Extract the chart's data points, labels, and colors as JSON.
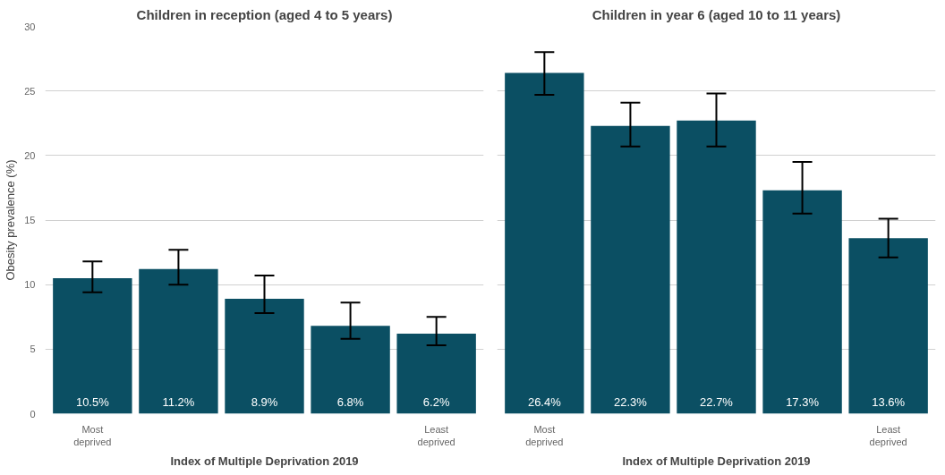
{
  "chart_data": [
    {
      "type": "bar",
      "title": "Children in reception (aged 4 to 5 years)",
      "xlabel": "Index of Multiple Deprivation 2019",
      "ylabel": "Obesity prevalence (%)",
      "categories": [
        "Most deprived",
        null,
        null,
        null,
        "Least deprived"
      ],
      "values": [
        10.5,
        11.2,
        8.9,
        6.8,
        6.2
      ],
      "color": "#0b4f63",
      "errors": [
        [
          9.4,
          11.8
        ],
        [
          10.0,
          12.7
        ],
        [
          7.8,
          10.7
        ],
        [
          5.8,
          8.6
        ],
        [
          5.3,
          7.5
        ]
      ],
      "value_labels": [
        "10.5%",
        "11.2%",
        "8.9%",
        "6.8%",
        "6.2%"
      ],
      "ylim": [
        0,
        30
      ],
      "yticks": [
        0,
        5,
        10,
        15,
        20,
        25,
        30
      ],
      "grid": "y"
    },
    {
      "type": "bar",
      "title": "Children in year 6 (aged 10 to 11 years)",
      "xlabel": "Index of Multiple Deprivation 2019",
      "categories": [
        "Most deprived",
        null,
        null,
        null,
        "Least deprived"
      ],
      "values": [
        26.4,
        22.3,
        22.7,
        17.3,
        13.6
      ],
      "color": "#0b4f63",
      "errors": [
        [
          24.7,
          28.0
        ],
        [
          20.7,
          24.1
        ],
        [
          20.7,
          24.8
        ],
        [
          15.5,
          19.5
        ],
        [
          12.1,
          15.1
        ]
      ],
      "value_labels": [
        "26.4%",
        "22.3%",
        "22.7%",
        "17.3%",
        "13.6%"
      ],
      "ylim": [
        0,
        30
      ],
      "yticks": [
        0,
        5,
        10,
        15,
        20,
        25,
        30
      ],
      "grid": "y",
      "tick_labels": "x"
    }
  ]
}
